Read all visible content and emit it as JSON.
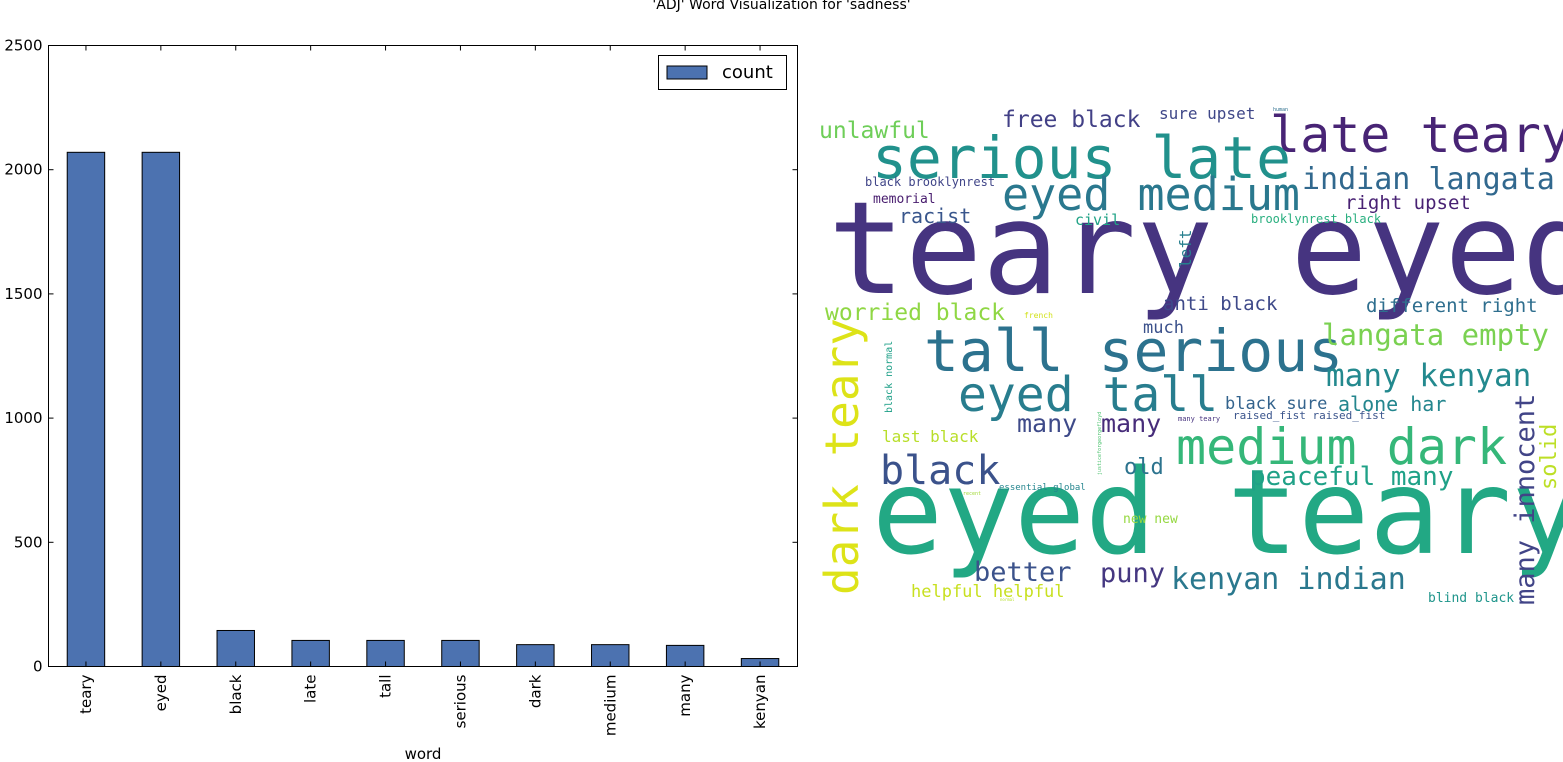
{
  "figure": {
    "title": "'ADJ' Word Visualization for 'sadness'"
  },
  "chart_data": [
    {
      "type": "bar",
      "categories": [
        "teary",
        "eyed",
        "black",
        "late",
        "tall",
        "serious",
        "dark",
        "medium",
        "many",
        "kenyan"
      ],
      "series": [
        {
          "name": "count",
          "values": [
            2070,
            2070,
            145,
            105,
            105,
            105,
            88,
            88,
            85,
            32
          ],
          "color": "#4c72b0"
        }
      ],
      "xlabel": "word",
      "ylabel": "",
      "ylim": [
        0,
        2500
      ],
      "yticks": [
        "0",
        "500",
        "1000",
        "1500",
        "2000",
        "2500"
      ],
      "grid": false,
      "legend": "top-right"
    },
    {
      "type": "wordcloud",
      "words": [
        {
          "text": "teary eyed",
          "color": "#463480"
        },
        {
          "text": "eyed teary",
          "color": "#22a884"
        },
        {
          "text": "serious late",
          "color": "#21918c"
        },
        {
          "text": "late teary",
          "color": "#482475"
        },
        {
          "text": "eyed medium",
          "color": "#2a788e"
        },
        {
          "text": "indian langata",
          "color": "#31688e"
        },
        {
          "text": "tall serious",
          "color": "#2c728e"
        },
        {
          "text": "eyed tall",
          "color": "#287d8e"
        },
        {
          "text": "medium dark",
          "color": "#35b779"
        },
        {
          "text": "dark teary",
          "color": "#dde318"
        },
        {
          "text": "black",
          "color": "#3b528b"
        },
        {
          "text": "many kenyan",
          "color": "#23898e"
        },
        {
          "text": "langata empty",
          "color": "#7ad151"
        },
        {
          "text": "kenyan indian",
          "color": "#2a788e"
        },
        {
          "text": "peaceful many",
          "color": "#1fa187"
        },
        {
          "text": "many innocent",
          "color": "#414487"
        },
        {
          "text": "better",
          "color": "#3b528b"
        },
        {
          "text": "puny",
          "color": "#453781"
        },
        {
          "text": "free black",
          "color": "#424086"
        },
        {
          "text": "unlawful",
          "color": "#6ece58"
        },
        {
          "text": "worried black",
          "color": "#8fd744"
        },
        {
          "text": "racist",
          "color": "#39568c"
        },
        {
          "text": "many",
          "color": "#3e4a89"
        },
        {
          "text": "many",
          "color": "#472c7a"
        },
        {
          "text": "different right",
          "color": "#2e6e8e"
        },
        {
          "text": "right upset",
          "color": "#482173"
        },
        {
          "text": "anti black",
          "color": "#3e4989"
        },
        {
          "text": "sure upset",
          "color": "#3f4788"
        },
        {
          "text": "black sure",
          "color": "#33638d"
        },
        {
          "text": "alone har",
          "color": "#24868e"
        },
        {
          "text": "old",
          "color": "#2c738e"
        },
        {
          "text": "solid",
          "color": "#bddf26"
        },
        {
          "text": "last black",
          "color": "#b8de29"
        },
        {
          "text": "much",
          "color": "#3b518b"
        },
        {
          "text": "civil",
          "color": "#20a386"
        },
        {
          "text": "left",
          "color": "#277f8e"
        },
        {
          "text": "memorial",
          "color": "#481c6e"
        },
        {
          "text": "black brooklynrest",
          "color": "#404588"
        },
        {
          "text": "brooklynrest black",
          "color": "#29af7f"
        },
        {
          "text": "helpful helpful",
          "color": "#c8e020"
        },
        {
          "text": "new new",
          "color": "#95d840"
        },
        {
          "text": "blind black",
          "color": "#1f958b"
        },
        {
          "text": "black normal",
          "color": "#1fa088"
        },
        {
          "text": "raised_fist raised_fist",
          "color": "#3a548c"
        },
        {
          "text": "essential global",
          "color": "#25858e"
        },
        {
          "text": "many teary",
          "color": "#46327e"
        },
        {
          "text": "french",
          "color": "#d2e21b"
        },
        {
          "text": "human",
          "color": "#2e6f8e"
        },
        {
          "text": "recent",
          "color": "#a2da37"
        },
        {
          "text": "justiceforgeorgefloyd",
          "color": "#4ac16d"
        },
        {
          "text": "normal",
          "color": "#b5de2b"
        }
      ]
    }
  ]
}
